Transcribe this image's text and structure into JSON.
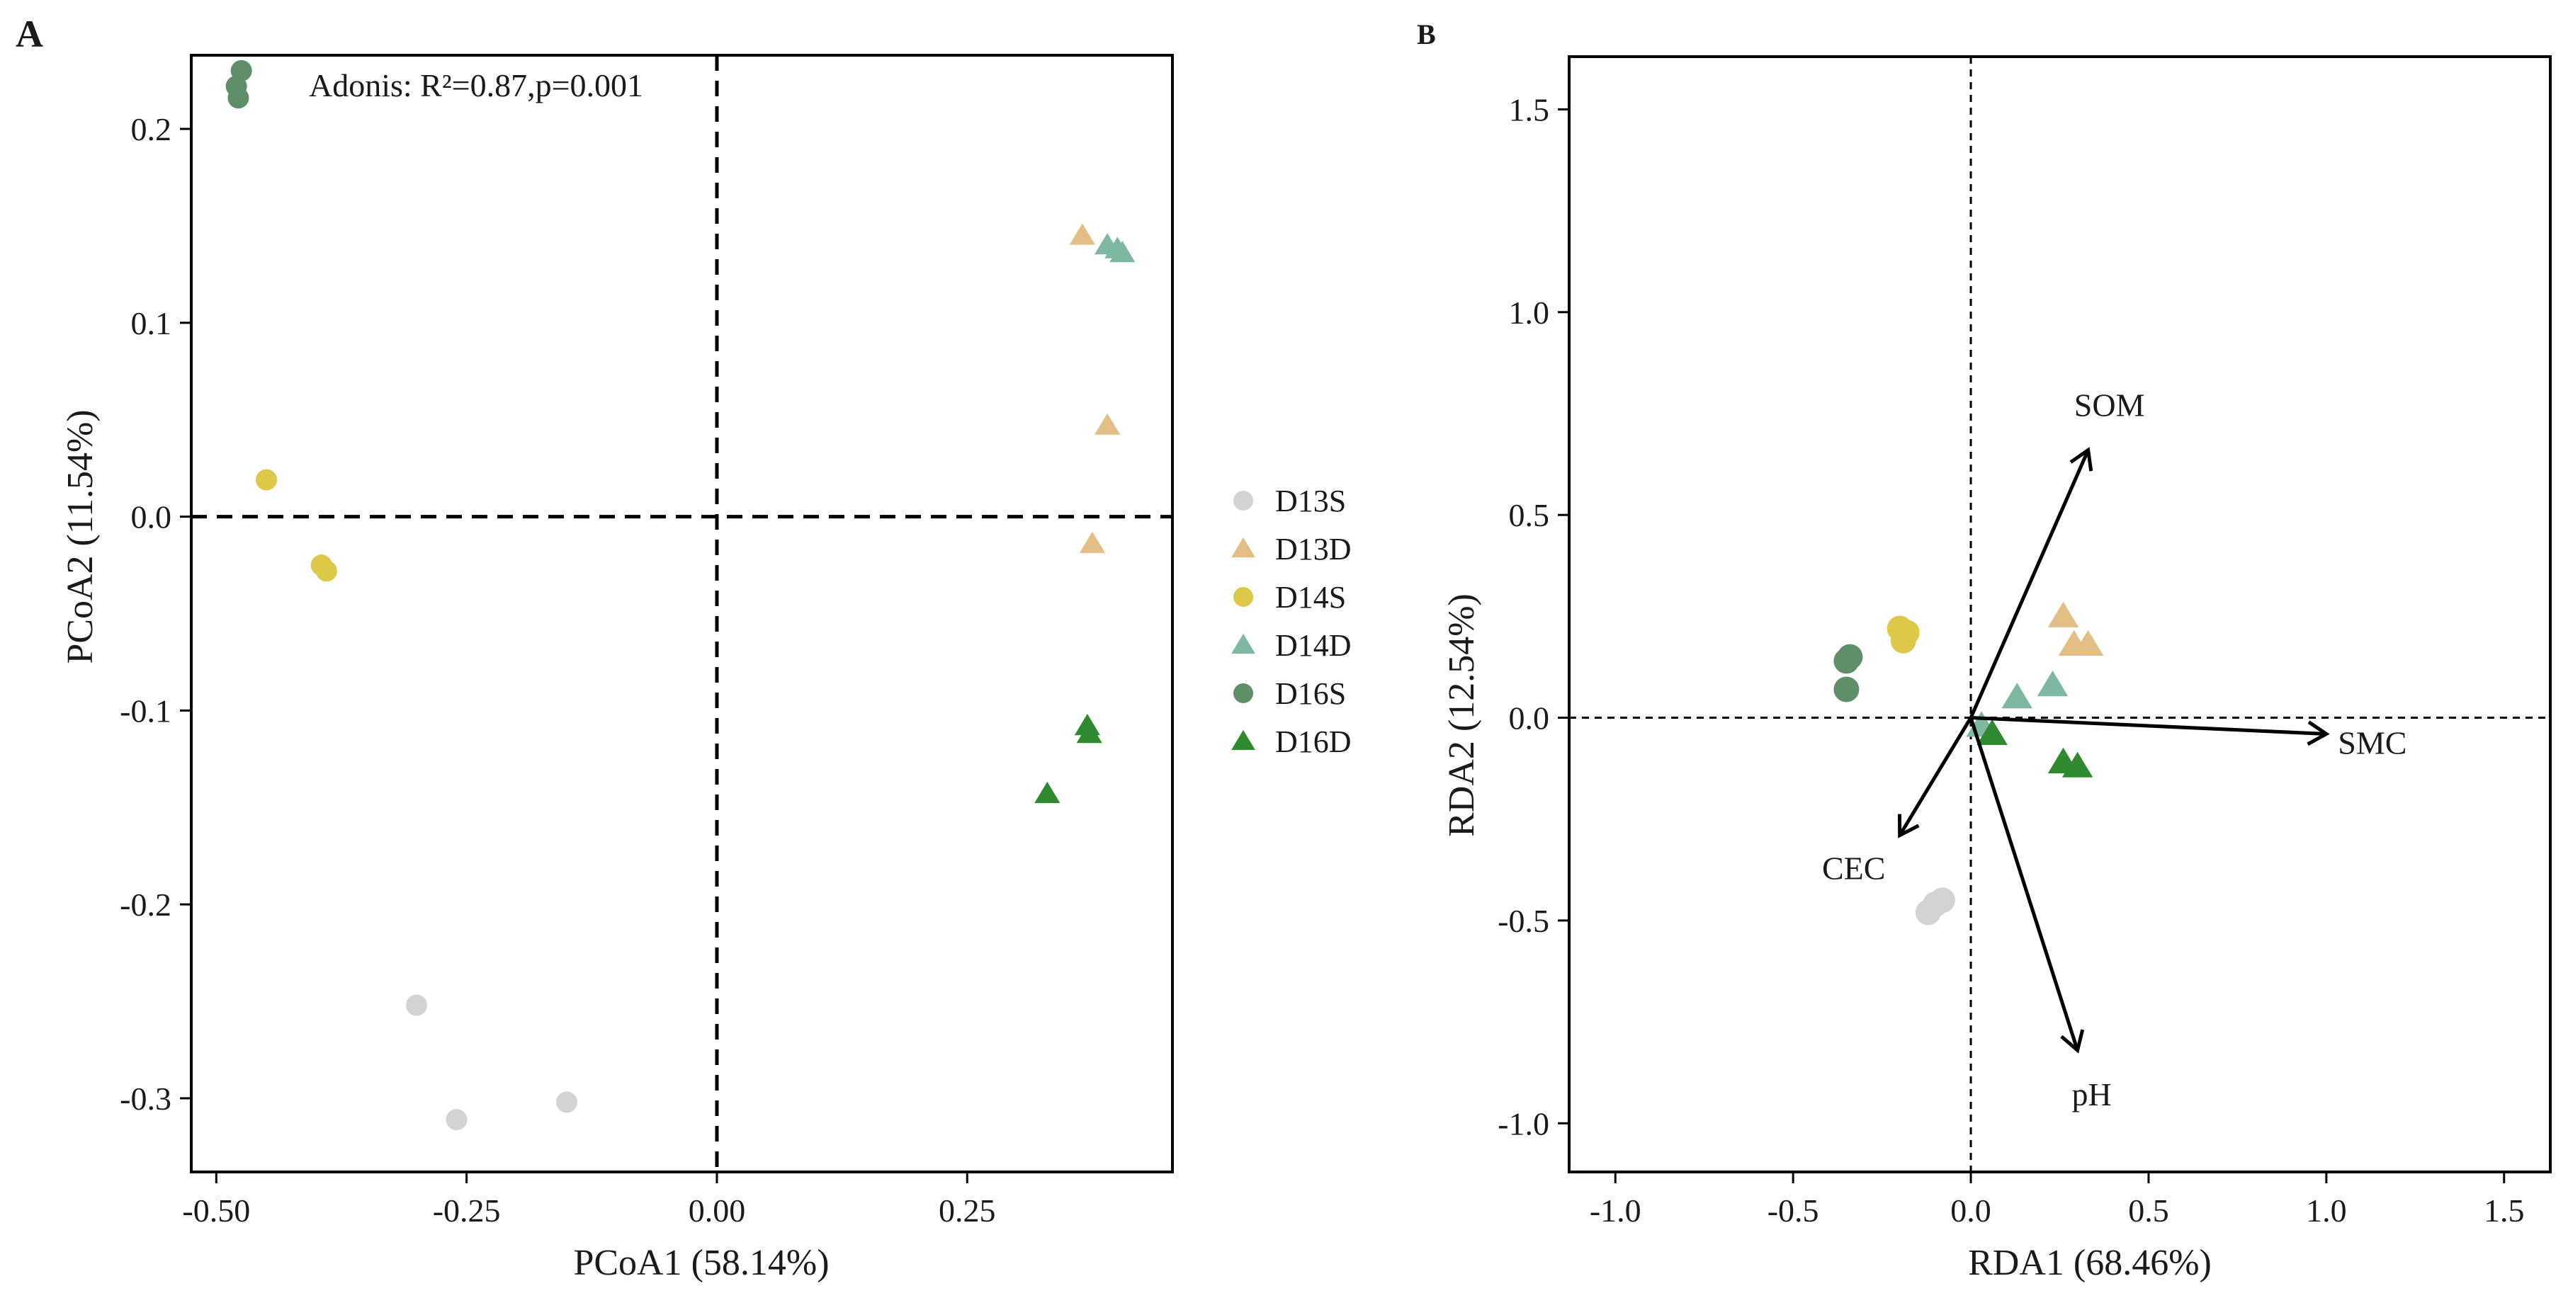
{
  "chart_data": [
    {
      "panel": "A",
      "type": "scatter",
      "annotation": "Adonis: R²=0.87,p=0.001",
      "xlabel": "PCoA1 (58.14%)",
      "ylabel": "PCoA2 (11.54%)",
      "xlim": [
        -0.525,
        0.455
      ],
      "ylim": [
        -0.338,
        0.238
      ],
      "xticks": [
        -0.5,
        -0.25,
        0.0,
        0.25
      ],
      "xtick_labels": [
        "-0.50",
        "-0.25",
        "0.00",
        "0.25"
      ],
      "yticks": [
        -0.3,
        -0.2,
        -0.1,
        0.0,
        0.1,
        0.2
      ],
      "ytick_labels": [
        "-0.3",
        "-0.2",
        "-0.1",
        "0.0",
        "0.1",
        "0.2"
      ],
      "reference_lines": {
        "x": 0,
        "y": 0,
        "style": "dashed"
      },
      "series": [
        {
          "name": "D13S",
          "shape": "circle",
          "color": "#d3d3d3",
          "points": [
            [
              -0.3,
              -0.252
            ],
            [
              -0.26,
              -0.311
            ],
            [
              -0.15,
              -0.302
            ]
          ]
        },
        {
          "name": "D13D",
          "shape": "triangle",
          "color": "#e3bf85",
          "points": [
            [
              0.365,
              0.145
            ],
            [
              0.39,
              0.047
            ],
            [
              0.375,
              -0.014
            ]
          ]
        },
        {
          "name": "D14S",
          "shape": "circle",
          "color": "#ddc84a",
          "points": [
            [
              -0.45,
              0.019
            ],
            [
              -0.395,
              -0.025
            ],
            [
              -0.39,
              -0.028
            ]
          ]
        },
        {
          "name": "D14D",
          "shape": "triangle",
          "color": "#7fb8a0",
          "points": [
            [
              0.39,
              0.14
            ],
            [
              0.4,
              0.138
            ],
            [
              0.405,
              0.136
            ]
          ]
        },
        {
          "name": "D16S",
          "shape": "circle",
          "color": "#5e8f6a",
          "points": [
            [
              -0.475,
              0.23
            ],
            [
              -0.48,
              0.222
            ],
            [
              -0.478,
              0.216
            ]
          ]
        },
        {
          "name": "D16D",
          "shape": "triangle",
          "color": "#2f8a2f",
          "points": [
            [
              0.37,
              -0.108
            ],
            [
              0.372,
              -0.112
            ],
            [
              0.33,
              -0.143
            ]
          ]
        }
      ],
      "legend": {
        "placement": "right",
        "entries": [
          {
            "label": "D13S",
            "shape": "circle",
            "color": "#d3d3d3"
          },
          {
            "label": "D13D",
            "shape": "triangle",
            "color": "#e3bf85"
          },
          {
            "label": "D14S",
            "shape": "circle",
            "color": "#ddc84a"
          },
          {
            "label": "D14D",
            "shape": "triangle",
            "color": "#7fb8a0"
          },
          {
            "label": "D16S",
            "shape": "circle",
            "color": "#5e8f6a"
          },
          {
            "label": "D16D",
            "shape": "triangle",
            "color": "#2f8a2f"
          }
        ]
      }
    },
    {
      "panel": "B",
      "type": "scatter",
      "xlabel": "RDA1 (68.46%)",
      "ylabel": "RDA2 (12.54%)",
      "xlim": [
        -1.13,
        1.63
      ],
      "ylim": [
        -1.12,
        1.63
      ],
      "xticks": [
        -1.0,
        -0.5,
        0.0,
        0.5,
        1.0,
        1.5
      ],
      "xtick_labels": [
        "-1.0",
        "-0.5",
        "0.0",
        "0.5",
        "1.0",
        "1.5"
      ],
      "yticks": [
        -1.0,
        -0.5,
        0.0,
        0.5,
        1.0,
        1.5
      ],
      "ytick_labels": [
        "-1.0",
        "-0.5",
        "0.0",
        "0.5",
        "1.0",
        "1.5"
      ],
      "reference_lines": {
        "x": 0,
        "y": 0,
        "style": "dashed"
      },
      "series": [
        {
          "name": "D13S",
          "shape": "circle",
          "color": "#d3d3d3",
          "points": [
            [
              -0.12,
              -0.48
            ],
            [
              -0.1,
              -0.46
            ],
            [
              -0.08,
              -0.45
            ]
          ]
        },
        {
          "name": "D13D",
          "shape": "triangle",
          "color": "#e3bf85",
          "points": [
            [
              0.26,
              0.25
            ],
            [
              0.29,
              0.18
            ],
            [
              0.33,
              0.18
            ]
          ]
        },
        {
          "name": "D14S",
          "shape": "circle",
          "color": "#ddc84a",
          "points": [
            [
              -0.2,
              0.22
            ],
            [
              -0.18,
              0.21
            ],
            [
              -0.19,
              0.19
            ]
          ]
        },
        {
          "name": "D14D",
          "shape": "triangle",
          "color": "#7fb8a0",
          "points": [
            [
              0.13,
              0.05
            ],
            [
              0.23,
              0.08
            ],
            [
              0.03,
              -0.02
            ]
          ]
        },
        {
          "name": "D16S",
          "shape": "circle",
          "color": "#5e8f6a",
          "points": [
            [
              -0.35,
              0.14
            ],
            [
              -0.34,
              0.15
            ],
            [
              -0.35,
              0.07
            ]
          ]
        },
        {
          "name": "D16D",
          "shape": "triangle",
          "color": "#2f8a2f",
          "points": [
            [
              0.06,
              -0.04
            ],
            [
              0.26,
              -0.11
            ],
            [
              0.3,
              -0.12
            ]
          ]
        }
      ],
      "env_vectors": [
        {
          "name": "SOM",
          "x": 0.33,
          "y": 0.66
        },
        {
          "name": "SMC",
          "x": 1.0,
          "y": -0.04
        },
        {
          "name": "CEC",
          "x": -0.2,
          "y": -0.29
        },
        {
          "name": "pH",
          "x": 0.3,
          "y": -0.82
        }
      ]
    }
  ]
}
